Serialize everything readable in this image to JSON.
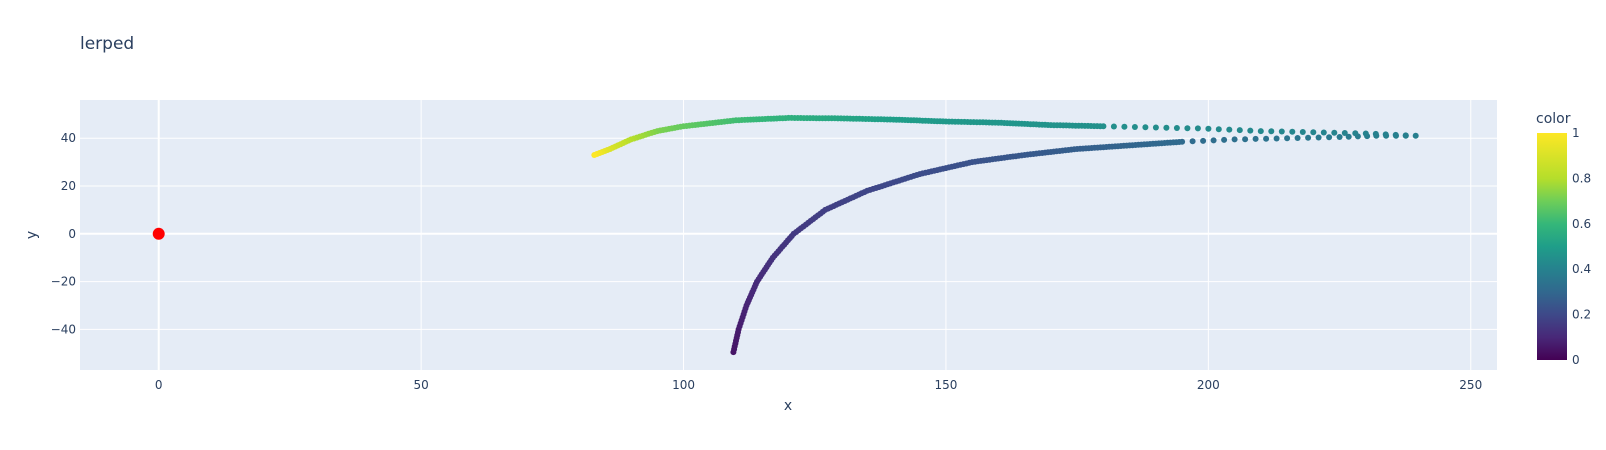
{
  "chart_data": {
    "type": "scatter",
    "title": "lerped",
    "xlabel": "x",
    "ylabel": "y",
    "xlim": [
      -15,
      255
    ],
    "ylim": [
      -57,
      56
    ],
    "x_ticks": [
      0,
      50,
      100,
      150,
      200,
      250
    ],
    "y_ticks": [
      -40,
      -20,
      0,
      20,
      40
    ],
    "x_tick_labels": [
      "0",
      "50",
      "100",
      "150",
      "200",
      "250"
    ],
    "y_tick_labels": [
      "−40",
      "−20",
      "0",
      "20",
      "40"
    ],
    "grid": true,
    "plot_background": "#e5ecf6",
    "colorscale": "Viridis",
    "colorbar": {
      "title": "color",
      "range": [
        0,
        1
      ],
      "ticks": [
        0,
        0.2,
        0.4,
        0.6,
        0.8,
        1
      ],
      "tick_labels": [
        "0",
        "0.2",
        "0.4",
        "0.6",
        "0.8",
        "1"
      ]
    },
    "series": [
      {
        "marker_color": "#ff0000",
        "points": [
          {
            "x": 0,
            "y": 0
          }
        ]
      },
      {
        "color_by": "color",
        "points": [
          {
            "x": 109.5,
            "y": -49.5,
            "c": 0.05
          },
          {
            "x": 110.5,
            "y": -40,
            "c": 0.07
          },
          {
            "x": 112,
            "y": -30,
            "c": 0.09
          },
          {
            "x": 114,
            "y": -20,
            "c": 0.11
          },
          {
            "x": 117,
            "y": -10,
            "c": 0.13
          },
          {
            "x": 121,
            "y": 0,
            "c": 0.15
          },
          {
            "x": 127,
            "y": 10,
            "c": 0.17
          },
          {
            "x": 135,
            "y": 18,
            "c": 0.19
          },
          {
            "x": 145,
            "y": 25,
            "c": 0.21
          },
          {
            "x": 155,
            "y": 30,
            "c": 0.23
          },
          {
            "x": 165,
            "y": 33,
            "c": 0.25
          },
          {
            "x": 175,
            "y": 35.5,
            "c": 0.27
          },
          {
            "x": 185,
            "y": 37,
            "c": 0.29
          },
          {
            "x": 195,
            "y": 38.5,
            "c": 0.31
          },
          {
            "x": 205,
            "y": 39.5,
            "c": 0.33
          },
          {
            "x": 215,
            "y": 40,
            "c": 0.35
          },
          {
            "x": 225,
            "y": 40.5,
            "c": 0.37
          },
          {
            "x": 232,
            "y": 41,
            "c": 0.38
          },
          {
            "x": 239.5,
            "y": 41,
            "c": 0.39
          },
          {
            "x": 230,
            "y": 42,
            "c": 0.4
          },
          {
            "x": 220,
            "y": 42.5,
            "c": 0.41
          },
          {
            "x": 210,
            "y": 43,
            "c": 0.42
          },
          {
            "x": 200,
            "y": 44,
            "c": 0.43
          },
          {
            "x": 190,
            "y": 44.5,
            "c": 0.44
          },
          {
            "x": 180,
            "y": 45,
            "c": 0.45
          },
          {
            "x": 170,
            "y": 45.5,
            "c": 0.46
          },
          {
            "x": 160,
            "y": 46.5,
            "c": 0.47
          },
          {
            "x": 150,
            "y": 47,
            "c": 0.48
          },
          {
            "x": 140,
            "y": 47.8,
            "c": 0.5
          },
          {
            "x": 130,
            "y": 48.3,
            "c": 0.53
          },
          {
            "x": 120,
            "y": 48.5,
            "c": 0.57
          },
          {
            "x": 110,
            "y": 47.5,
            "c": 0.62
          },
          {
            "x": 100,
            "y": 45,
            "c": 0.68
          },
          {
            "x": 95,
            "y": 43,
            "c": 0.72
          },
          {
            "x": 90,
            "y": 39.5,
            "c": 0.8
          },
          {
            "x": 86,
            "y": 35.5,
            "c": 0.9
          },
          {
            "x": 83,
            "y": 33,
            "c": 1.0
          }
        ]
      }
    ]
  }
}
